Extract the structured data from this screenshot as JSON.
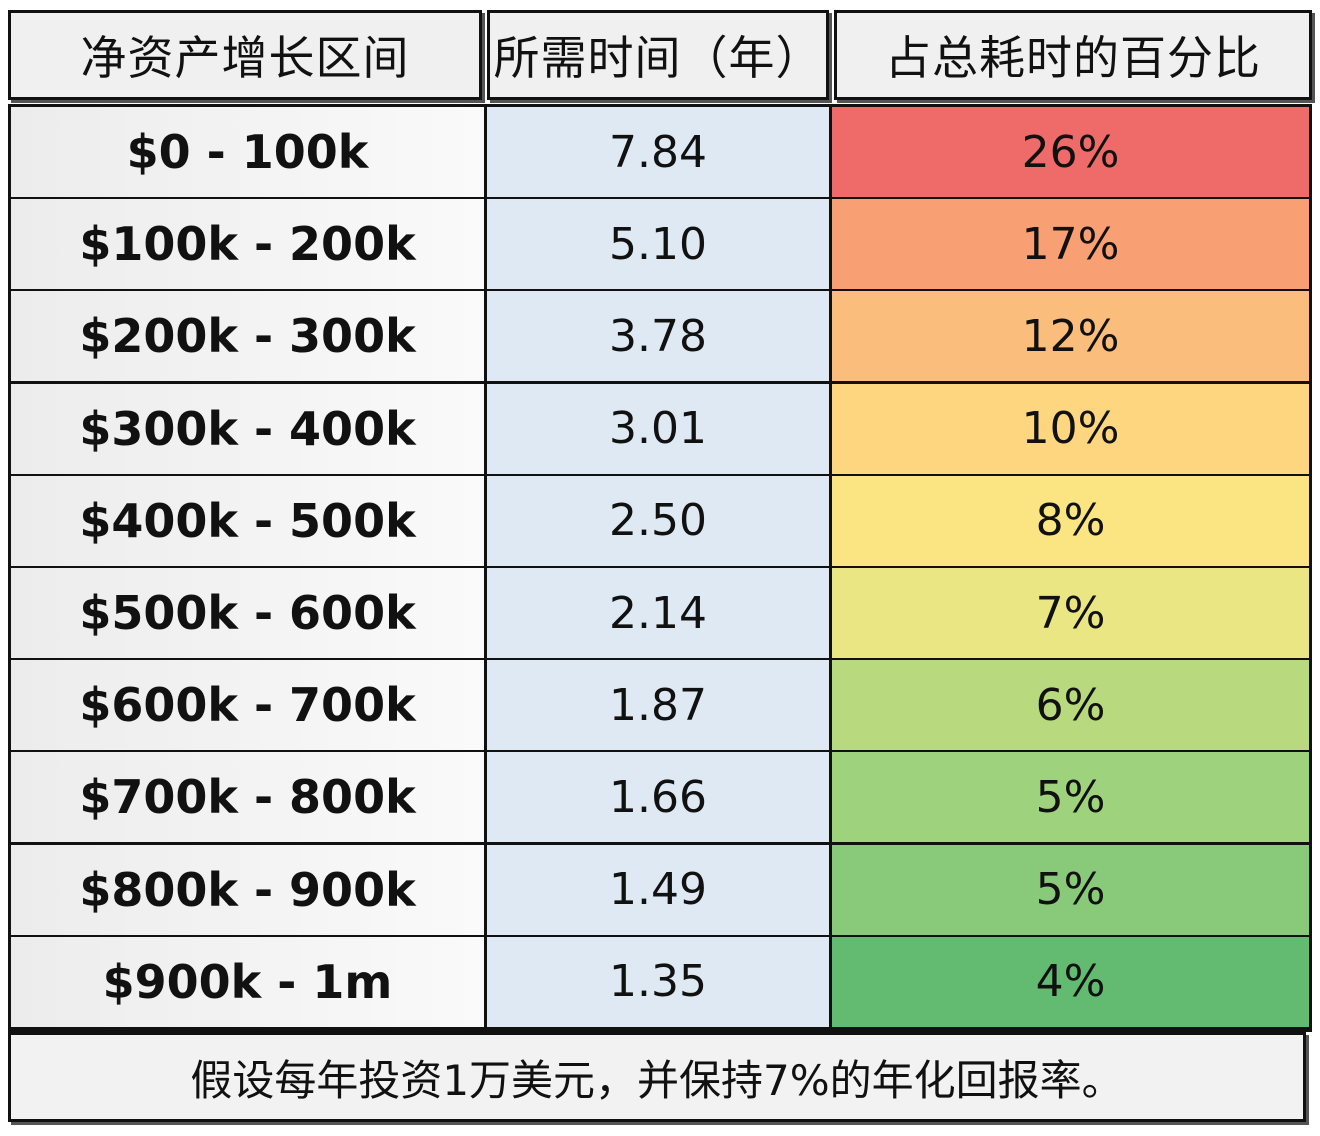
{
  "table": {
    "headers": [
      "净资产增长区间",
      "所需时间（年）",
      "占总耗时的百分比"
    ],
    "rows": [
      {
        "range": "$0 - 100k",
        "years": "7.84",
        "percent": "26%",
        "color": "#ee6b69"
      },
      {
        "range": "$100k - 200k",
        "years": "5.10",
        "percent": "17%",
        "color": "#f8a074"
      },
      {
        "range": "$200k - 300k",
        "years": "3.78",
        "percent": "12%",
        "color": "#fbbd7c"
      },
      {
        "range": "$300k - 400k",
        "years": "3.01",
        "percent": "10%",
        "color": "#fdd67f"
      },
      {
        "range": "$400k - 500k",
        "years": "2.50",
        "percent": "8%",
        "color": "#fbe583"
      },
      {
        "range": "$500k - 600k",
        "years": "2.14",
        "percent": "7%",
        "color": "#e9e683"
      },
      {
        "range": "$600k - 700k",
        "years": "1.87",
        "percent": "6%",
        "color": "#b9d97f"
      },
      {
        "range": "$700k - 800k",
        "years": "1.66",
        "percent": "5%",
        "color": "#9fd27d"
      },
      {
        "range": "$800k - 900k",
        "years": "1.49",
        "percent": "5%",
        "color": "#88c97a"
      },
      {
        "range": "$900k - 1m",
        "years": "1.35",
        "percent": "4%",
        "color": "#63bb72"
      }
    ]
  },
  "footer": {
    "note": "假设每年投资1万美元，并保持7%的年化回报率。"
  }
}
